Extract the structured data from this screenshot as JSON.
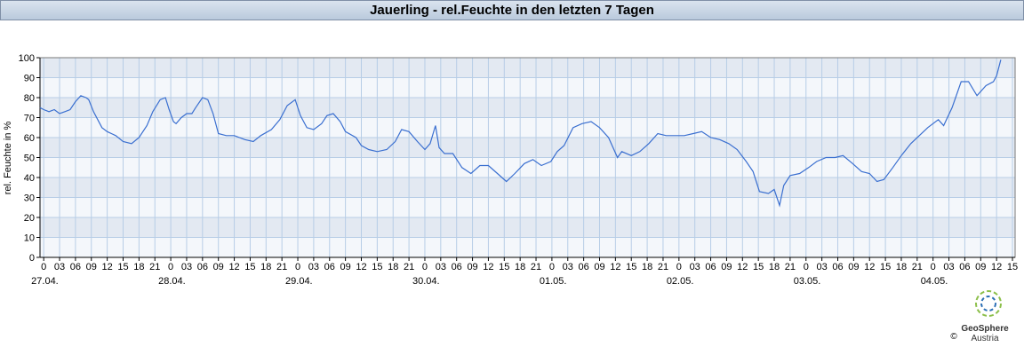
{
  "chart_data": {
    "type": "line",
    "title": "Jauerling - rel.Feuchte in den letzten 7 Tagen",
    "ylabel": "rel. Feuchte in %",
    "grid": true,
    "xlim": [
      -0.7,
      183.5
    ],
    "ylim": [
      0,
      100
    ],
    "yticks": [
      0,
      10,
      20,
      30,
      40,
      50,
      60,
      70,
      80,
      90,
      100
    ],
    "xticks": [
      0,
      {
        "value": 3,
        "label": "03"
      },
      {
        "value": 6,
        "label": "06"
      },
      {
        "value": 9,
        "label": "09"
      },
      12,
      15,
      18,
      21,
      {
        "value": 24,
        "label": "0"
      },
      {
        "value": 27,
        "label": "03"
      },
      {
        "value": 30,
        "label": "06"
      },
      {
        "value": 33,
        "label": "09"
      },
      {
        "value": 36,
        "label": "12"
      },
      {
        "value": 39,
        "label": "15"
      },
      {
        "value": 42,
        "label": "18"
      },
      {
        "value": 45,
        "label": "21"
      },
      {
        "value": 48,
        "label": "0"
      },
      {
        "value": 51,
        "label": "03"
      },
      {
        "value": 54,
        "label": "06"
      },
      {
        "value": 57,
        "label": "09"
      },
      {
        "value": 60,
        "label": "12"
      },
      {
        "value": 63,
        "label": "15"
      },
      {
        "value": 66,
        "label": "18"
      },
      {
        "value": 69,
        "label": "21"
      },
      {
        "value": 72,
        "label": "0"
      },
      {
        "value": 75,
        "label": "03"
      },
      {
        "value": 78,
        "label": "06"
      },
      {
        "value": 81,
        "label": "09"
      },
      {
        "value": 84,
        "label": "12"
      },
      {
        "value": 87,
        "label": "15"
      },
      {
        "value": 90,
        "label": "18"
      },
      {
        "value": 93,
        "label": "21"
      },
      {
        "value": 96,
        "label": "0"
      },
      {
        "value": 99,
        "label": "03"
      },
      {
        "value": 102,
        "label": "06"
      },
      {
        "value": 105,
        "label": "09"
      },
      {
        "value": 108,
        "label": "12"
      },
      {
        "value": 111,
        "label": "15"
      },
      {
        "value": 114,
        "label": "18"
      },
      {
        "value": 117,
        "label": "21"
      },
      {
        "value": 120,
        "label": "0"
      },
      {
        "value": 123,
        "label": "03"
      },
      {
        "value": 126,
        "label": "06"
      },
      {
        "value": 129,
        "label": "09"
      },
      {
        "value": 132,
        "label": "12"
      },
      {
        "value": 135,
        "label": "15"
      },
      {
        "value": 138,
        "label": "18"
      },
      {
        "value": 141,
        "label": "21"
      },
      {
        "value": 144,
        "label": "0"
      },
      {
        "value": 147,
        "label": "03"
      },
      {
        "value": 150,
        "label": "06"
      },
      {
        "value": 153,
        "label": "09"
      },
      {
        "value": 156,
        "label": "12"
      },
      {
        "value": 159,
        "label": "15"
      },
      {
        "value": 162,
        "label": "18"
      },
      {
        "value": 165,
        "label": "21"
      },
      {
        "value": 168,
        "label": "0"
      },
      {
        "value": 171,
        "label": "03"
      },
      {
        "value": 174,
        "label": "06"
      },
      {
        "value": 177,
        "label": "09"
      },
      {
        "value": 180,
        "label": "12"
      },
      {
        "value": 183,
        "label": "15"
      }
    ],
    "day_labels": [
      {
        "value": 0,
        "label": "27.04."
      },
      {
        "value": 24,
        "label": "28.04."
      },
      {
        "value": 48,
        "label": "29.04."
      },
      {
        "value": 72,
        "label": "30.04."
      },
      {
        "value": 96,
        "label": "01.05."
      },
      {
        "value": 120,
        "label": "02.05."
      },
      {
        "value": 144,
        "label": "03.05."
      },
      {
        "value": 168,
        "label": "04.05."
      }
    ],
    "series": [
      {
        "color": "#3a6fd0",
        "x": [
          -0.7,
          0,
          1,
          2,
          3,
          4,
          5,
          6,
          7,
          8,
          8.5,
          9.4,
          11,
          12,
          13.6,
          15,
          16.6,
          18,
          19.5,
          20.6,
          22,
          23,
          23.7,
          24.5,
          25,
          26,
          27,
          28,
          28.7,
          30,
          31,
          32,
          33,
          34.5,
          36,
          38,
          39.6,
          41,
          43,
          44.6,
          46,
          47.5,
          48.5,
          49.7,
          51,
          52.5,
          53.5,
          54.7,
          56,
          57,
          59,
          60,
          61.4,
          63,
          64.8,
          66.4,
          67.6,
          69,
          70.6,
          72,
          73,
          74,
          74.7,
          75.7,
          77.3,
          79,
          80.7,
          82.4,
          84,
          85.7,
          87.4,
          89,
          90.8,
          92.4,
          94,
          95.8,
          97,
          98.3,
          100,
          101.7,
          103.4,
          105,
          106.7,
          108.4,
          109.2,
          111,
          112.6,
          114.3,
          116,
          117.6,
          119.3,
          121,
          122.7,
          124.3,
          126,
          127.7,
          129.4,
          131,
          132.7,
          134,
          135.2,
          136.9,
          138,
          139,
          139.8,
          141,
          142.8,
          144.5,
          146,
          147.8,
          149.5,
          151,
          152.8,
          154.5,
          156,
          157.4,
          158.7,
          160.4,
          162,
          163.8,
          165.4,
          167,
          169,
          170,
          171.6,
          173.3,
          174.7,
          176.3,
          178,
          179.4,
          180,
          180.8
        ],
        "values": [
          75,
          74,
          73,
          74,
          72,
          73,
          74,
          78,
          81,
          80,
          79,
          73,
          65,
          63,
          61,
          58,
          57,
          60,
          66,
          73,
          79,
          80,
          74,
          68,
          67,
          70,
          72,
          72,
          75,
          80,
          79,
          72,
          62,
          61,
          61,
          59,
          58,
          61,
          64,
          69,
          76,
          79,
          71,
          65,
          64,
          67,
          71,
          72,
          68,
          63,
          60,
          56,
          54,
          53,
          54,
          58,
          64,
          63,
          58,
          54,
          57,
          66,
          55,
          52,
          52,
          45,
          42,
          46,
          46,
          42,
          38,
          42,
          47,
          49,
          46,
          48,
          53,
          56,
          65,
          67,
          68,
          65,
          60,
          50,
          53,
          51,
          53,
          57,
          62,
          61,
          61,
          61,
          62,
          63,
          60,
          59,
          57,
          54,
          48,
          43,
          33,
          32,
          34,
          26,
          36,
          41,
          42,
          45,
          48,
          50,
          50,
          51,
          47,
          43,
          42,
          38,
          39,
          45,
          51,
          57,
          61,
          65,
          69,
          66,
          75,
          88,
          88,
          81,
          86,
          88,
          91,
          99
        ]
      }
    ],
    "logo": {
      "name": "GeoSphere",
      "sub": "Austria",
      "copyright": "©"
    }
  }
}
